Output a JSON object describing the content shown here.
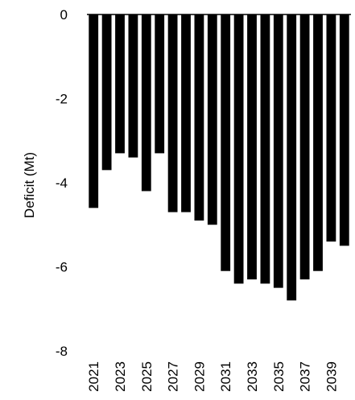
{
  "chart_data": {
    "type": "bar",
    "title": "",
    "xlabel": "",
    "ylabel": "Deficit (Mt)",
    "ylim": [
      -8,
      0
    ],
    "yticks": [
      0,
      -2,
      -4,
      -6,
      -8
    ],
    "ytick_labels": [
      "0",
      "-2",
      "-4",
      "-6",
      "-8"
    ],
    "grid": false,
    "bar_color": "#000000",
    "categories": [
      "2021",
      "2022",
      "2023",
      "2024",
      "2025",
      "2026",
      "2027",
      "2028",
      "2029",
      "2030",
      "2031",
      "2032",
      "2033",
      "2034",
      "2035",
      "2036",
      "2037",
      "2038",
      "2039",
      "2040"
    ],
    "xtick_labels_shown": [
      "2021",
      "",
      "2023",
      "",
      "2025",
      "",
      "2027",
      "",
      "2029",
      "",
      "2031",
      "",
      "2033",
      "",
      "2035",
      "",
      "2037",
      "",
      "2039",
      ""
    ],
    "values": [
      -4.6,
      -3.7,
      -3.3,
      -3.4,
      -4.2,
      -3.3,
      -4.7,
      -4.7,
      -4.9,
      -5.0,
      -6.1,
      -6.4,
      -6.3,
      -6.4,
      -6.5,
      -6.8,
      -6.3,
      -6.1,
      -5.4,
      -5.5
    ]
  }
}
